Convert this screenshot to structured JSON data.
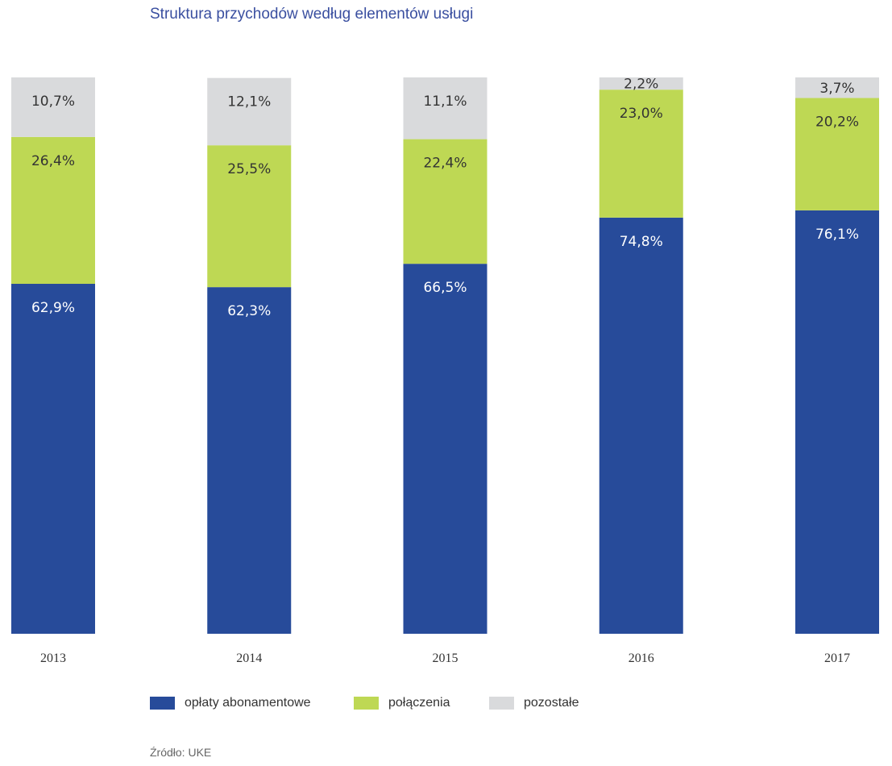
{
  "chart_data": {
    "type": "bar",
    "stacked": true,
    "title": "Struktura przychodów według elementów usługi",
    "categories": [
      "2013",
      "2014",
      "2015",
      "2016",
      "2017"
    ],
    "series": [
      {
        "name": "opłaty abonamentowe",
        "color": "#274b9a",
        "values": [
          62.9,
          62.3,
          66.5,
          74.8,
          76.1
        ],
        "labels": [
          "62,9%",
          "62,3%",
          "66,5%",
          "74,8%",
          "76,1%"
        ],
        "label_color": "#ffffff"
      },
      {
        "name": "połączenia",
        "color": "#bed854",
        "values": [
          26.4,
          25.5,
          22.4,
          23.0,
          20.2
        ],
        "labels": [
          "26,4%",
          "25,5%",
          "22,4%",
          "23,0%",
          "20,2%"
        ],
        "label_color": "#333333"
      },
      {
        "name": "pozostałe",
        "color": "#d9dadc",
        "values": [
          10.7,
          12.1,
          11.1,
          2.2,
          3.7
        ],
        "labels": [
          "10,7%",
          "12,1%",
          "11,1%",
          "2,2%",
          "3,7%"
        ],
        "label_color": "#333333"
      }
    ],
    "ylim": [
      0,
      100
    ],
    "xlabel": "",
    "ylabel": "",
    "grid": false,
    "legend": "bottom"
  },
  "source": "Źródło: UKE"
}
